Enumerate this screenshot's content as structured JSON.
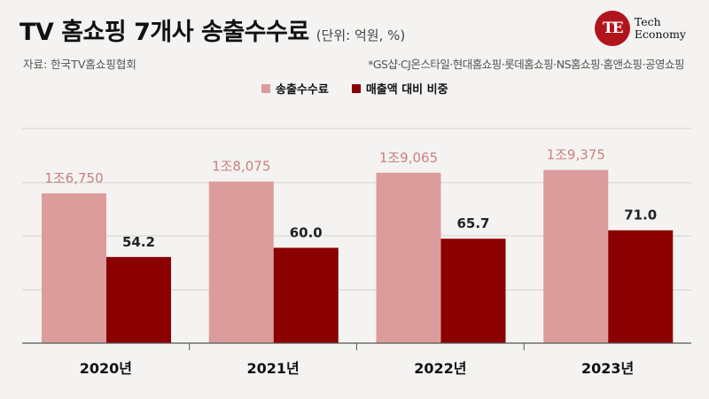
{
  "header": {
    "title": "TV 홈쇼핑 7개사 송출수수료",
    "unit": "(단위: 억원, %)",
    "source": "자료: 한국TV홈쇼핑협회",
    "note": "*GS샵·CJ온스타일·현대홈쇼핑·롯데홈쇼핑·NS홈쇼핑·홈앤쇼핑·공영쇼핑"
  },
  "logo": {
    "mark": "TE",
    "line1": "Tech",
    "line2": "Economy"
  },
  "colors": {
    "fee": "#dc9c9c",
    "ratio": "#8b0000",
    "grid": "#d2d0cd",
    "axis": "#555555",
    "label_fee": "#c98080",
    "label_ratio": "#222222"
  },
  "chart_data": {
    "type": "bar",
    "categories": [
      "2020년",
      "2021년",
      "2022년",
      "2023년"
    ],
    "series": [
      {
        "name": "송출수수료",
        "values": [
          16750,
          18075,
          19065,
          19375
        ],
        "labels": [
          "1조6,750",
          "1조8,075",
          "1조9,065",
          "1조9,375"
        ],
        "axis": "left"
      },
      {
        "name": "매출액 대비 비중",
        "values": [
          54.2,
          60.0,
          65.7,
          71.0
        ],
        "labels": [
          "54.2",
          "60.0",
          "65.7",
          "71.0"
        ],
        "axis": "right"
      }
    ],
    "grid": true,
    "legend": "top-center"
  }
}
